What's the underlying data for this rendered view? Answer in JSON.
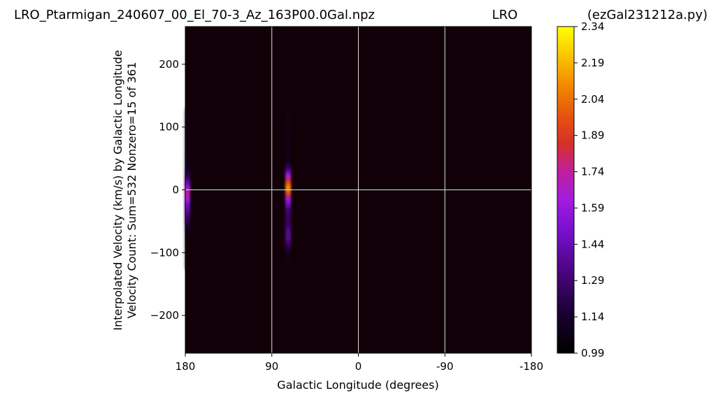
{
  "header": {
    "left": "LRO_Ptarmigan_240607_00_El_70-3_Az_163P00.0Gal.npz",
    "center": "LRO",
    "right": "(ezGal231212a.py)"
  },
  "chart_data": {
    "type": "heatmap",
    "xlabel": "Galactic Longitude (degrees)",
    "ylabel_line1": "Interpolated Velocity (km/s) by Galactic Longitude",
    "ylabel_line2": "Velocity Count: Sum=532 Nonzero=15 of 361",
    "xlim": [
      180,
      -180
    ],
    "ylim": [
      -260,
      260
    ],
    "x_ticks": [
      {
        "value": 180,
        "label": "180"
      },
      {
        "value": 90,
        "label": "90"
      },
      {
        "value": 0,
        "label": "0"
      },
      {
        "value": -90,
        "label": "-90"
      },
      {
        "value": -180,
        "label": "-180"
      }
    ],
    "y_ticks": [
      {
        "value": 200,
        "label": "200"
      },
      {
        "value": 100,
        "label": "100"
      },
      {
        "value": 0,
        "label": "0"
      },
      {
        "value": -100,
        "label": "−100"
      },
      {
        "value": -200,
        "label": "−200"
      }
    ],
    "grid": true,
    "background_color": "#110007",
    "colormap": "gnuplot",
    "colorbar": {
      "min": 0.99,
      "max": 2.34,
      "ticks": [
        "0.99",
        "1.14",
        "1.29",
        "1.44",
        "1.59",
        "1.74",
        "1.89",
        "2.04",
        "2.19",
        "2.34"
      ]
    },
    "stripes": [
      {
        "longitude": 178,
        "profile": [
          {
            "v": 130,
            "z": 1.02
          },
          {
            "v": 100,
            "z": 1.06
          },
          {
            "v": 70,
            "z": 1.08
          },
          {
            "v": 40,
            "z": 1.12
          },
          {
            "v": 25,
            "z": 1.25
          },
          {
            "v": 12,
            "z": 1.45
          },
          {
            "v": 0,
            "z": 1.72
          },
          {
            "v": -10,
            "z": 1.7
          },
          {
            "v": -22,
            "z": 1.5
          },
          {
            "v": -40,
            "z": 1.35
          },
          {
            "v": -55,
            "z": 1.2
          },
          {
            "v": -70,
            "z": 1.06
          },
          {
            "v": -95,
            "z": 1.02
          },
          {
            "v": -125,
            "z": 1.0
          }
        ]
      },
      {
        "longitude": 73,
        "profile": [
          {
            "v": 130,
            "z": 1.04
          },
          {
            "v": 100,
            "z": 1.07
          },
          {
            "v": 70,
            "z": 1.09
          },
          {
            "v": 45,
            "z": 1.15
          },
          {
            "v": 32,
            "z": 1.4
          },
          {
            "v": 20,
            "z": 1.75
          },
          {
            "v": 8,
            "z": 2.05
          },
          {
            "v": 3,
            "z": 2.15
          },
          {
            "v": -5,
            "z": 1.9
          },
          {
            "v": -15,
            "z": 1.6
          },
          {
            "v": -30,
            "z": 1.35
          },
          {
            "v": -50,
            "z": 1.3
          },
          {
            "v": -65,
            "z": 1.4
          },
          {
            "v": -80,
            "z": 1.38
          },
          {
            "v": -95,
            "z": 1.2
          },
          {
            "v": -110,
            "z": 1.05
          },
          {
            "v": -120,
            "z": 1.0
          }
        ]
      }
    ]
  }
}
